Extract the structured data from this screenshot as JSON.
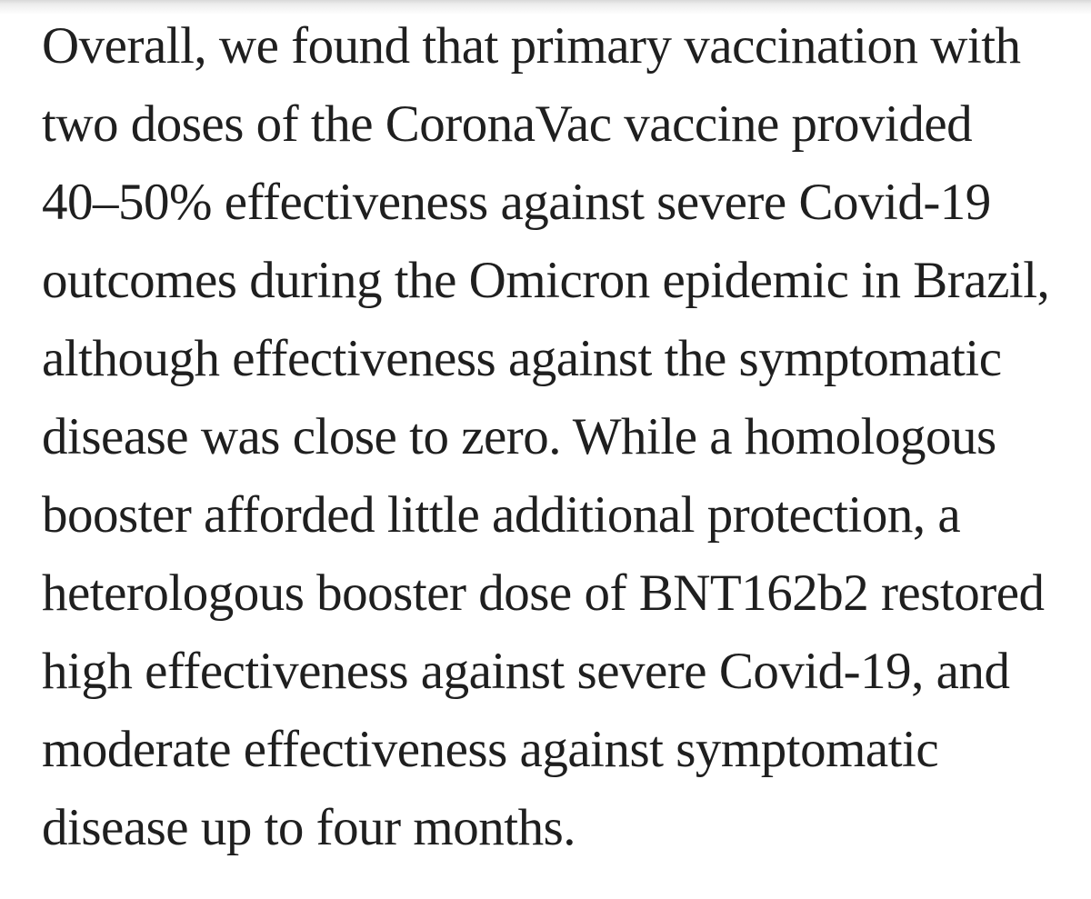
{
  "page": {
    "background_color": "#ffffff",
    "text_color": "#1f1f1f",
    "top_fade_color": "#d9d9d9"
  },
  "paragraph": {
    "full_text": "Overall, we found that primary vaccination with two doses of the CoronaVac vaccine provided 40–50% effectiveness against severe Covid-19 outcomes during the Omicron epidemic in Brazil, although effectiveness against the symptomatic disease was close to zero. While a homologous booster afforded little additional protection, a heterologous booster dose of BNT162b2 restored high effectiveness against severe Covid-19, and moderate effectiveness against symptomatic disease up to four months.",
    "lines": [
      "Overall, we found that primary vaccination with",
      "two doses of the CoronaVac vaccine provided",
      "40–50% effectiveness against severe Covid-19",
      "outcomes during the Omicron epidemic in Brazil,",
      "although effectiveness against the symptomatic",
      "disease was close to zero. While a homologous",
      "booster afforded little additional protection, a",
      "heterologous booster dose of BNT162b2 restored",
      "high effectiveness against severe Covid-19, and",
      "moderate effectiveness against symptomatic",
      "disease up to four months."
    ]
  }
}
